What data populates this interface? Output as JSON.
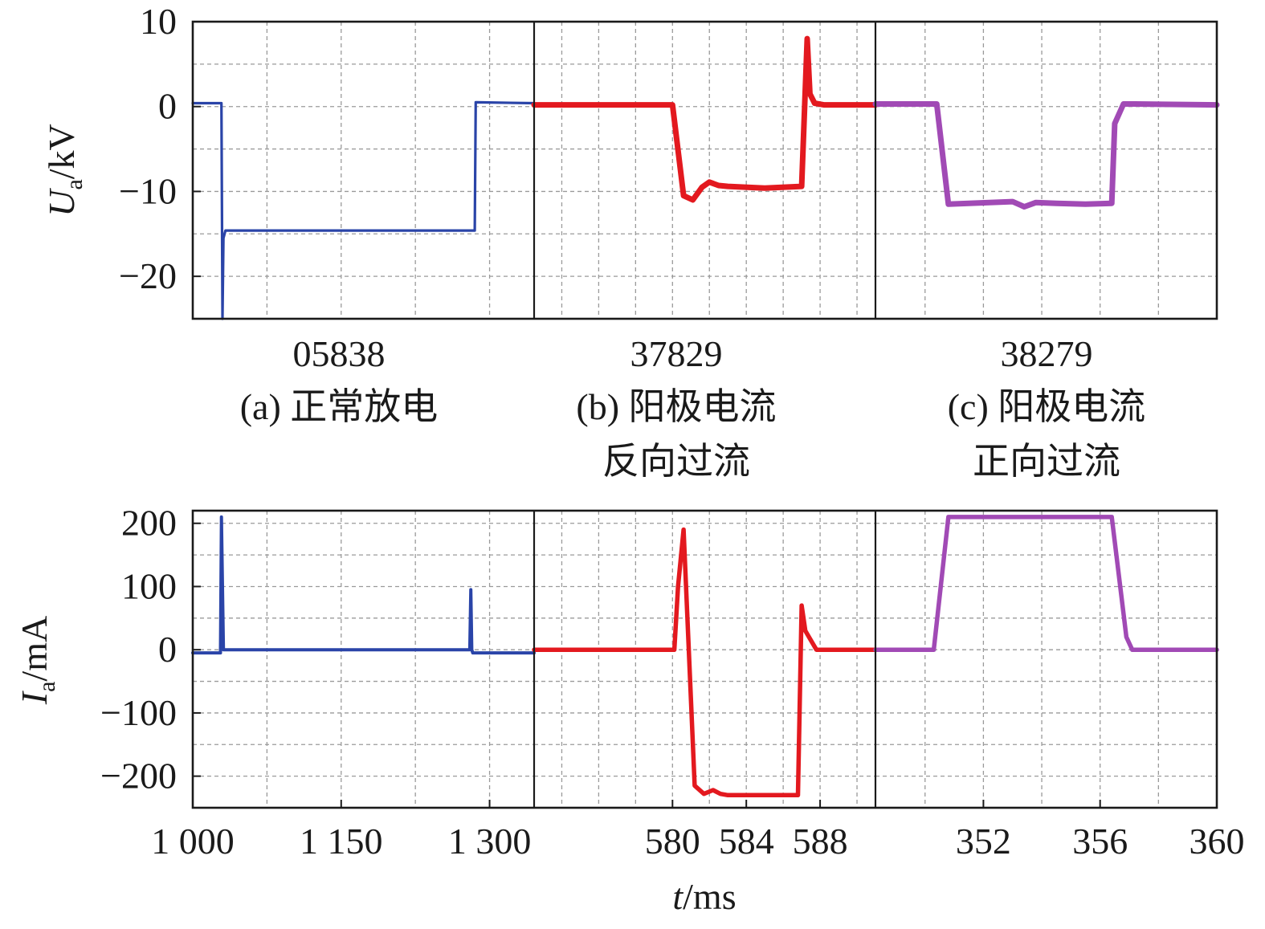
{
  "colors": {
    "normal": "#2a44a8",
    "reverse": "#e3191f",
    "forward": "#a14ab5"
  },
  "xlabel": {
    "italic": "t",
    "rest": "/ms"
  },
  "top_ylabel": {
    "italic": "U",
    "sub": "a",
    "rest": "/kV"
  },
  "bottom_ylabel": {
    "italic": "I",
    "sub": "a",
    "rest": "/mA"
  },
  "captions": [
    {
      "shot": "05838",
      "line1": "(a) 正常放电",
      "line2": ""
    },
    {
      "shot": "37829",
      "line1": "(b) 阳极电流",
      "line2": "反向过流"
    },
    {
      "shot": "38279",
      "line1": "(c) 阳极电流",
      "line2": "正向过流"
    }
  ],
  "chart_data": [
    {
      "type": "line",
      "row": "voltage",
      "panel": "a",
      "ylim": [
        -25,
        10
      ],
      "yticks": [
        10,
        0,
        -10,
        -20
      ],
      "ytick_labels": [
        "10",
        "0",
        "−10",
        "−20"
      ],
      "xlim": [
        1000,
        1345
      ],
      "xticks": [
        1000,
        1150,
        1300
      ],
      "xtick_labels": [
        "1 000",
        "1 150",
        "1 300"
      ],
      "series": [
        {
          "color_key": "normal",
          "x": [
            1000,
            1029,
            1030,
            1031,
            1033,
            1037,
            1285,
            1286,
            1287,
            1345
          ],
          "y": [
            0.4,
            0.4,
            -25,
            -15.5,
            -14.6,
            -14.6,
            -14.6,
            0.5,
            0.5,
            0.4
          ]
        }
      ]
    },
    {
      "type": "line",
      "row": "voltage",
      "panel": "b",
      "ylim": [
        -25,
        10
      ],
      "yticks": [
        10,
        0,
        -10,
        -20
      ],
      "xlim": [
        572.5,
        591
      ],
      "xticks": [
        580,
        584,
        588
      ],
      "xtick_labels": [
        "580",
        "584",
        "588"
      ],
      "series": [
        {
          "color_key": "reverse",
          "x": [
            572.5,
            580,
            580.6,
            581.1,
            581.6,
            582.0,
            582.5,
            583,
            585,
            587,
            587.3,
            587.45,
            587.7,
            588.2,
            591
          ],
          "y": [
            0.2,
            0.2,
            -10.5,
            -11,
            -9.5,
            -8.9,
            -9.3,
            -9.4,
            -9.6,
            -9.4,
            8,
            1.5,
            0.4,
            0.2,
            0.2
          ]
        }
      ]
    },
    {
      "type": "line",
      "row": "voltage",
      "panel": "c",
      "ylim": [
        -25,
        10
      ],
      "yticks": [
        10,
        0,
        -10,
        -20
      ],
      "xlim": [
        348.3,
        360
      ],
      "xticks": [
        352,
        356,
        360
      ],
      "xtick_labels": [
        "352",
        "356",
        "360"
      ],
      "series": [
        {
          "color_key": "forward",
          "x": [
            348.3,
            350.4,
            350.8,
            353,
            353.4,
            353.8,
            354.5,
            355.5,
            356.4,
            356.5,
            356.8,
            357.2,
            360
          ],
          "y": [
            0.3,
            0.3,
            -11.5,
            -11.2,
            -11.8,
            -11.3,
            -11.4,
            -11.5,
            -11.4,
            -2,
            0.3,
            0.3,
            0.2
          ]
        }
      ]
    },
    {
      "type": "line",
      "row": "current",
      "panel": "a",
      "ylim": [
        -250,
        220
      ],
      "yticks": [
        200,
        100,
        0,
        -100,
        -200
      ],
      "ytick_labels": [
        "200",
        "100",
        "0",
        "−100",
        "−200"
      ],
      "xlim": [
        1000,
        1345
      ],
      "xticks": [
        1000,
        1150,
        1300
      ],
      "xtick_labels": [
        "1 000",
        "1 150",
        "1 300"
      ],
      "series": [
        {
          "color_key": "normal",
          "x": [
            1000,
            1028,
            1029,
            1030,
            1031,
            1033,
            1280,
            1281,
            1282,
            1283,
            1345
          ],
          "y": [
            -5,
            -5,
            210,
            100,
            0,
            0,
            0,
            95,
            0,
            -5,
            -5
          ]
        }
      ]
    },
    {
      "type": "line",
      "row": "current",
      "panel": "b",
      "ylim": [
        -250,
        220
      ],
      "yticks": [
        200,
        100,
        0,
        -100,
        -200
      ],
      "xlim": [
        572.5,
        591
      ],
      "xticks": [
        580,
        584,
        588
      ],
      "xtick_labels": [
        "580",
        "584",
        "588"
      ],
      "series": [
        {
          "color_key": "reverse",
          "x": [
            572.5,
            580.1,
            580.3,
            580.6,
            581.2,
            581.7,
            582.2,
            582.6,
            583,
            586.8,
            587,
            587.2,
            587.8,
            591
          ],
          "y": [
            0,
            0,
            100,
            190,
            -215,
            -228,
            -222,
            -228,
            -230,
            -230,
            70,
            30,
            0,
            0
          ]
        }
      ]
    },
    {
      "type": "line",
      "row": "current",
      "panel": "c",
      "ylim": [
        -250,
        220
      ],
      "yticks": [
        200,
        100,
        0,
        -100,
        -200
      ],
      "xlim": [
        348.3,
        360
      ],
      "xticks": [
        352,
        356,
        360
      ],
      "xtick_labels": [
        "352",
        "356",
        "360"
      ],
      "series": [
        {
          "color_key": "forward",
          "x": [
            348.3,
            350.3,
            350.8,
            351.2,
            356.4,
            356.9,
            357.1,
            357.4,
            360
          ],
          "y": [
            0,
            0,
            210,
            210,
            210,
            20,
            0,
            0,
            0
          ]
        }
      ]
    }
  ]
}
